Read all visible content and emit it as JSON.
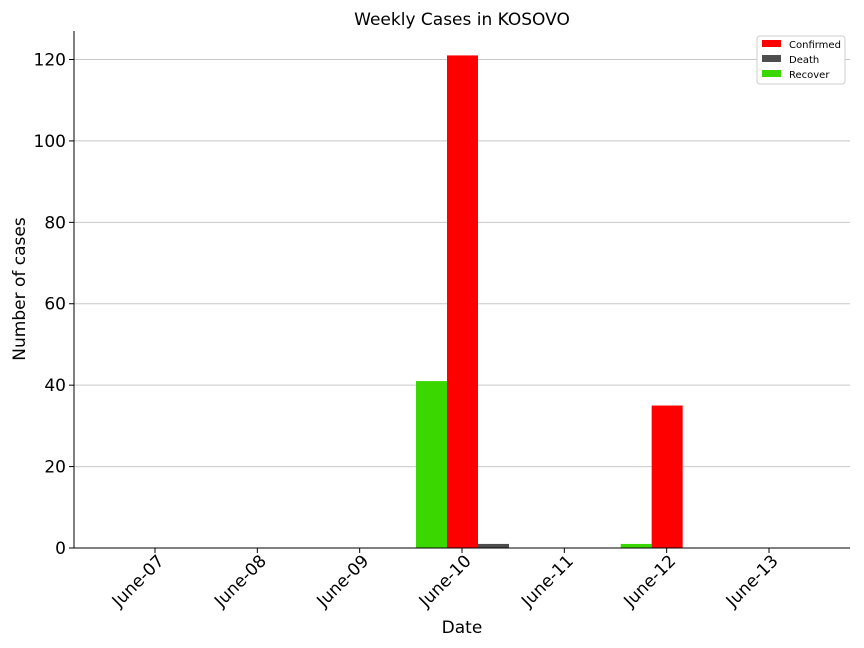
{
  "chart_data": {
    "type": "bar",
    "title": "Weekly Cases in KOSOVO",
    "xlabel": "Date",
    "ylabel": "Number of cases",
    "categories": [
      "June-07",
      "June-08",
      "June-09",
      "June-10",
      "June-11",
      "June-12",
      "June-13"
    ],
    "series": [
      {
        "name": "Recover",
        "color": "#3ad700",
        "values": [
          0,
          0,
          0,
          41,
          0,
          1,
          0
        ]
      },
      {
        "name": "Confirmed",
        "color": "#ff0000",
        "values": [
          0,
          0,
          0,
          121,
          0,
          35,
          0
        ]
      },
      {
        "name": "Death",
        "color": "#4d4d4d",
        "values": [
          0,
          0,
          0,
          1,
          0,
          0,
          0
        ]
      }
    ],
    "legend_order": [
      "Confirmed",
      "Death",
      "Recover"
    ],
    "ylim": [
      0,
      127
    ],
    "yticks": [
      0,
      20,
      40,
      60,
      80,
      100,
      120
    ],
    "grid": "horizontal",
    "legend_position": "top-right"
  }
}
